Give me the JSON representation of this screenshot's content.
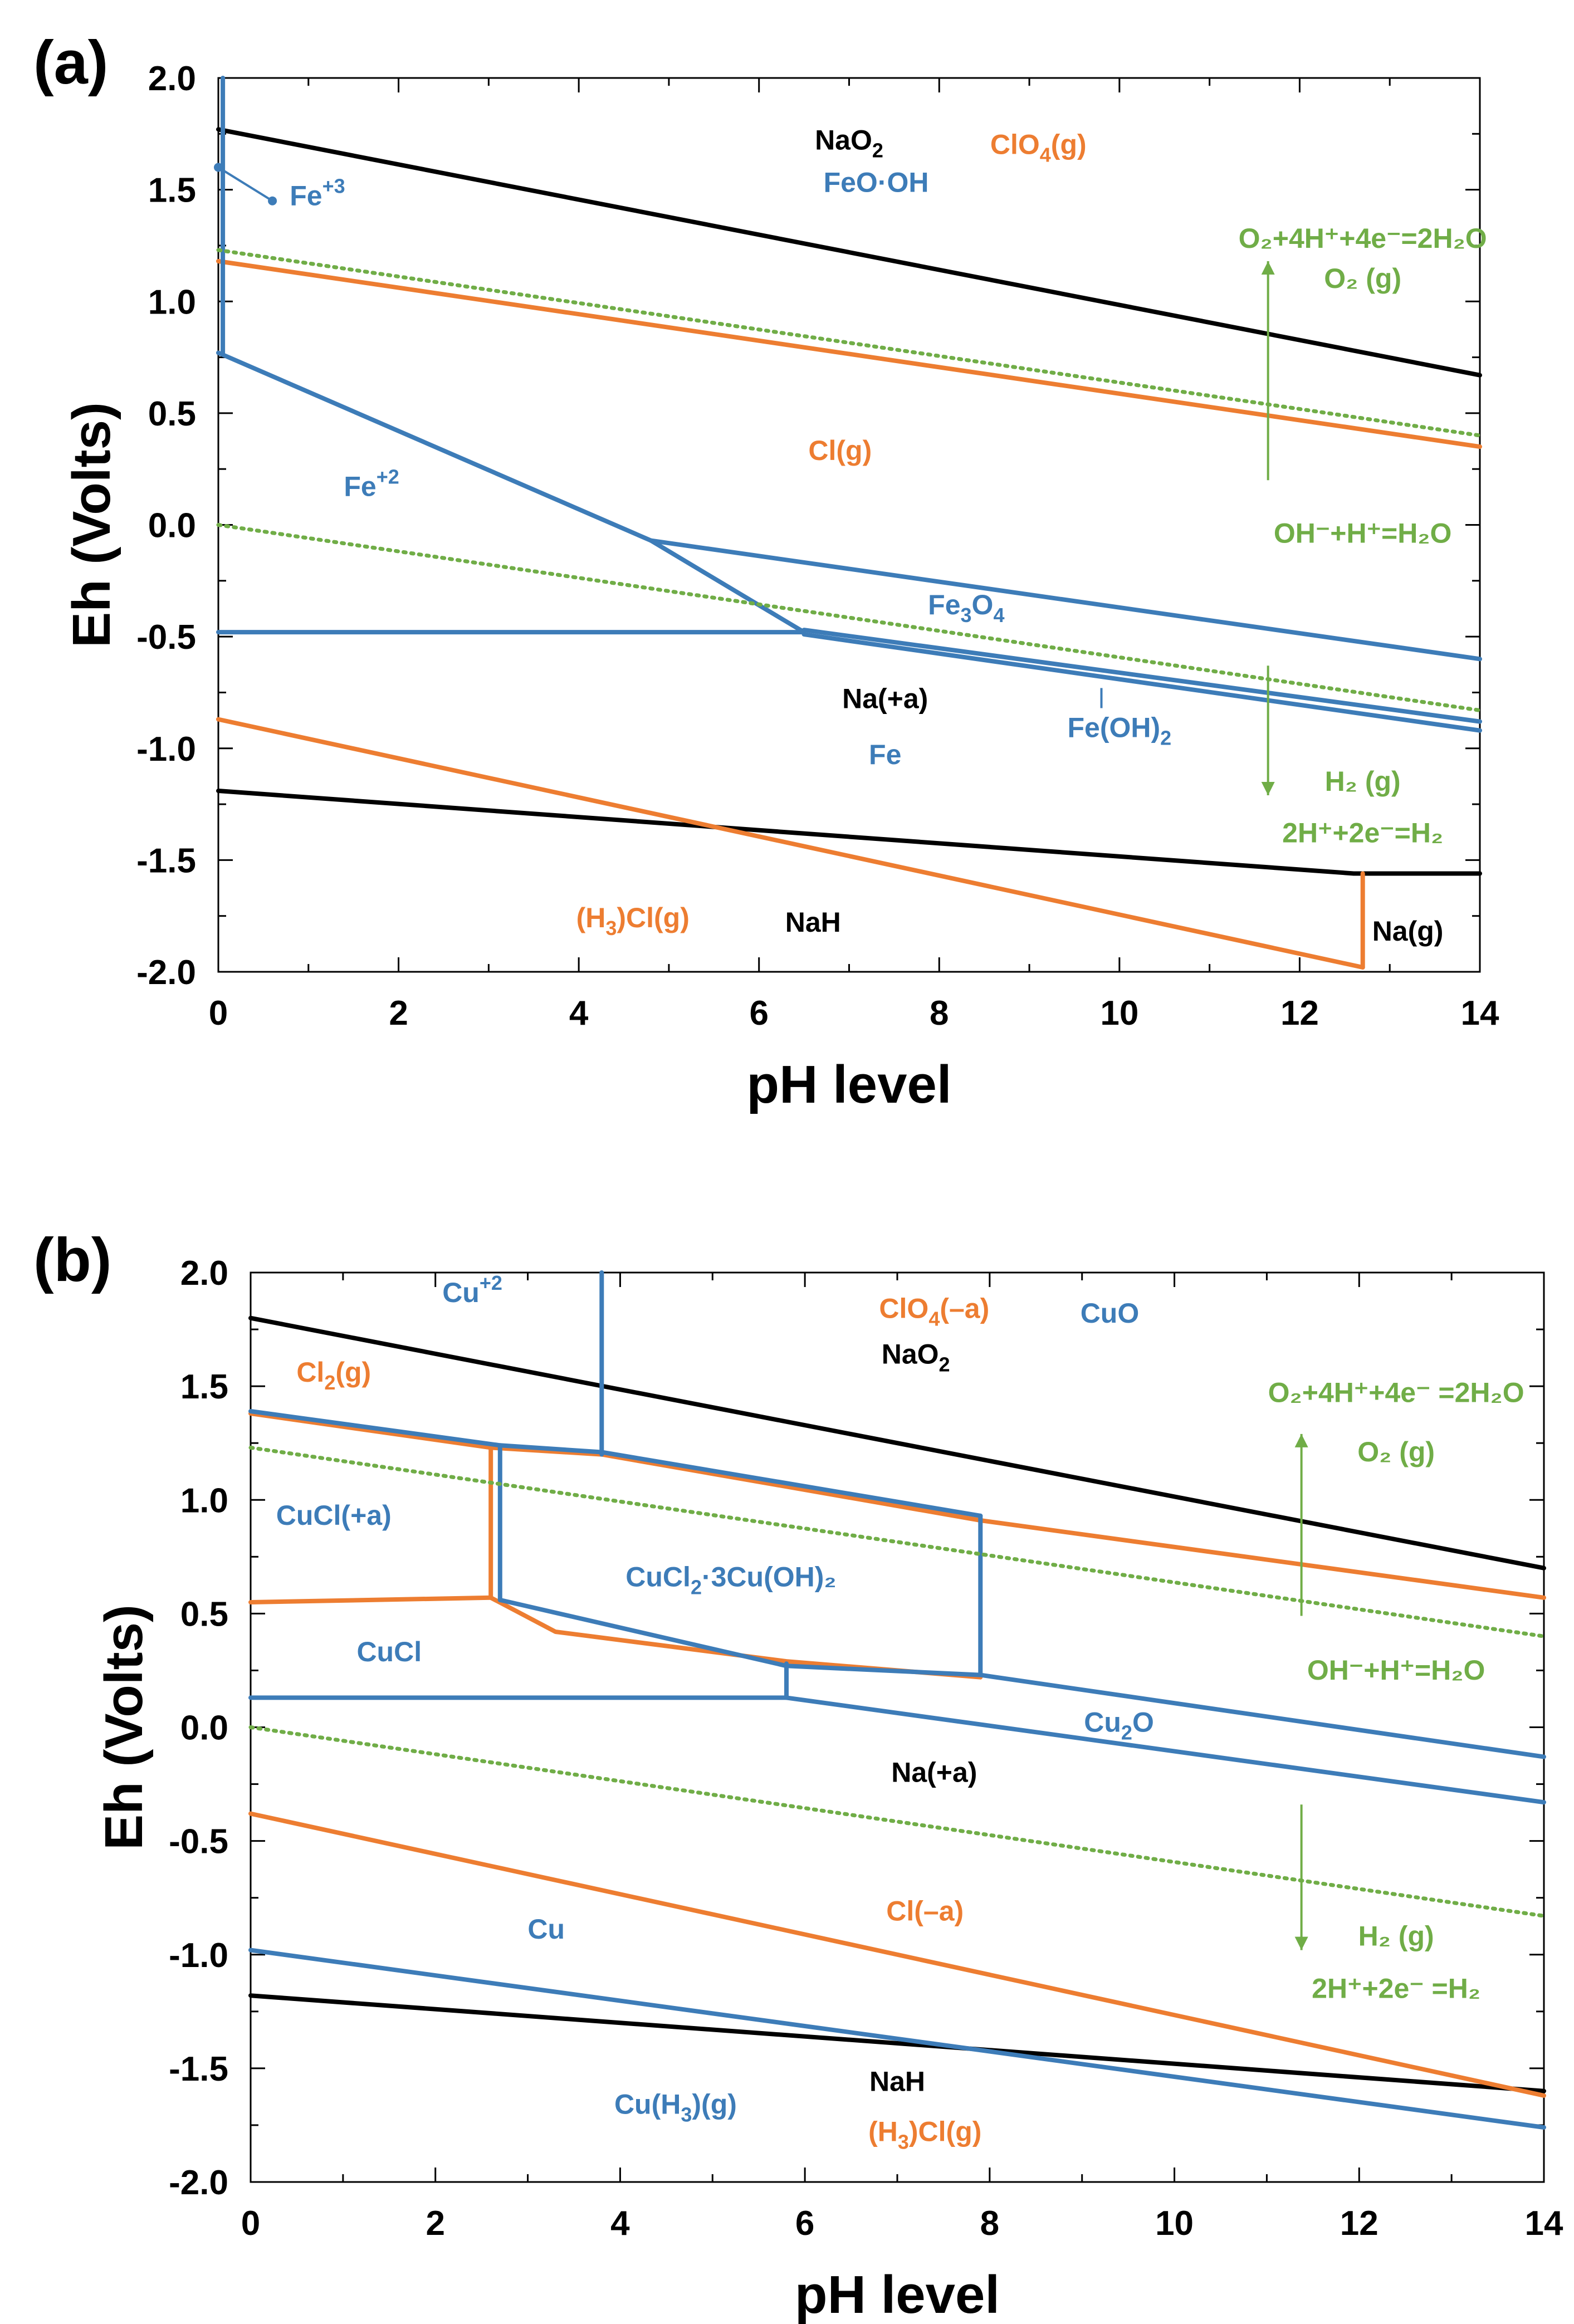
{
  "colors": {
    "black": "#000000",
    "orange": "#ED7D31",
    "blue": "#3D7CB8",
    "green": "#70AD47"
  },
  "chart_data": [
    {
      "type": "line",
      "panel": "(a)",
      "xlabel": "pH level",
      "ylabel": "Eh (Volts)",
      "xlim": [
        0,
        14
      ],
      "ylim": [
        -2.0,
        2.0
      ],
      "xticks": [
        0,
        2,
        4,
        6,
        8,
        10,
        12,
        14
      ],
      "yticks": [
        -2.0,
        -1.5,
        -1.0,
        -0.5,
        0.0,
        0.5,
        1.0,
        1.5,
        2.0
      ],
      "ytick_labels": [
        "-2.0",
        "-1.5",
        "-1.0",
        "-0.5",
        "0.0",
        "0.5",
        "1.0",
        "1.5",
        "2.0"
      ],
      "series": [
        {
          "name": "Na boundary upper",
          "system": "Na",
          "style": "solid",
          "points": [
            [
              0,
              1.77
            ],
            [
              14,
              0.67
            ]
          ]
        },
        {
          "name": "Na boundary lower",
          "system": "Na",
          "style": "solid",
          "points": [
            [
              0,
              -1.19
            ],
            [
              12.6,
              -1.56
            ],
            [
              14,
              -1.56
            ]
          ]
        },
        {
          "name": "Cl boundary upper",
          "system": "Cl",
          "style": "solid",
          "points": [
            [
              0,
              1.18
            ],
            [
              14,
              0.35
            ]
          ]
        },
        {
          "name": "Cl boundary lower",
          "system": "Cl",
          "style": "solid",
          "points": [
            [
              0,
              -0.87
            ],
            [
              12.7,
              -1.98
            ]
          ]
        },
        {
          "name": "Na(g) boundary",
          "system": "Cl",
          "style": "solid",
          "points": [
            [
              12.7,
              -1.56
            ],
            [
              12.7,
              -1.98
            ]
          ]
        },
        {
          "name": "Fe+3 boundary",
          "system": "Fe",
          "style": "solid",
          "points": [
            [
              0.05,
              0.77
            ],
            [
              0.05,
              2.0
            ]
          ]
        },
        {
          "name": "Fe+2 / FeO·OH boundary",
          "system": "Fe",
          "style": "solid",
          "points": [
            [
              0,
              0.77
            ],
            [
              4.8,
              -0.07
            ],
            [
              6.5,
              -0.48
            ]
          ]
        },
        {
          "name": "Fe+2 / Fe boundary",
          "system": "Fe",
          "style": "solid",
          "points": [
            [
              0,
              -0.48
            ],
            [
              6.5,
              -0.48
            ]
          ]
        },
        {
          "name": "Fe3O4 upper",
          "system": "Fe",
          "style": "solid",
          "points": [
            [
              4.8,
              -0.07
            ],
            [
              14,
              -0.6
            ]
          ]
        },
        {
          "name": "Fe(OH)2 upper",
          "system": "Fe",
          "style": "solid",
          "points": [
            [
              6.5,
              -0.47
            ],
            [
              14,
              -0.88
            ]
          ]
        },
        {
          "name": "Fe(OH)2 lower",
          "system": "Fe",
          "style": "solid",
          "points": [
            [
              6.5,
              -0.49
            ],
            [
              14,
              -0.92
            ]
          ]
        },
        {
          "name": "O2 / H2O",
          "system": "water",
          "style": "dotted",
          "points": [
            [
              0,
              1.23
            ],
            [
              14,
              0.4
            ]
          ]
        },
        {
          "name": "H2 / H+",
          "system": "water",
          "style": "dotted",
          "points": [
            [
              0,
              0.0
            ],
            [
              14,
              -0.83
            ]
          ]
        }
      ],
      "labels": [
        {
          "text": "NaO",
          "sub": "2",
          "tail": "",
          "x": 7.0,
          "y": 1.68,
          "system": "Na"
        },
        {
          "text": "ClO",
          "sub": "4",
          "tail": "(g)",
          "x": 9.1,
          "y": 1.66,
          "system": "Cl"
        },
        {
          "text": "FeO·OH",
          "sub": "",
          "tail": "",
          "x": 7.3,
          "y": 1.49,
          "system": "Fe"
        },
        {
          "text": "Fe",
          "sup": "+3",
          "tail": "",
          "x": 1.1,
          "y": 1.43,
          "system": "Fe"
        },
        {
          "text": "Cl(g)",
          "sub": "",
          "tail": "",
          "x": 6.9,
          "y": 0.29,
          "system": "Cl"
        },
        {
          "text": "Fe",
          "sup": "+2",
          "tail": "",
          "x": 1.7,
          "y": 0.13,
          "system": "Fe"
        },
        {
          "text": "Fe",
          "sub": "3",
          "mid": "O",
          "sub2": "4",
          "tail": "",
          "x": 8.3,
          "y": -0.4,
          "system": "Fe"
        },
        {
          "text": "Na(+a)",
          "sub": "",
          "tail": "",
          "x": 7.4,
          "y": -0.82,
          "system": "Na"
        },
        {
          "text": "Fe",
          "sub": "",
          "tail": "",
          "x": 7.4,
          "y": -1.07,
          "system": "Fe"
        },
        {
          "text": "Fe(OH)",
          "sub": "2",
          "tail": "",
          "x": 10.0,
          "y": -0.95,
          "system": "Fe"
        },
        {
          "text": "(H",
          "sub": "3",
          "tail": ")Cl(g)",
          "x": 4.6,
          "y": -1.8,
          "system": "Cl"
        },
        {
          "text": "NaH",
          "sub": "",
          "tail": "",
          "x": 6.6,
          "y": -1.82,
          "system": "Na"
        },
        {
          "text": "Na(g)",
          "sub": "",
          "tail": "",
          "x": 13.2,
          "y": -1.86,
          "system": "Na"
        }
      ],
      "water_labels": [
        {
          "text": "O₂+4H⁺+4e⁻=2H₂O",
          "x": 12.7,
          "y": 1.24
        },
        {
          "text": "O₂ (g)",
          "x": 12.7,
          "y": 1.06
        },
        {
          "text": "OH⁻+H⁺=H₂O",
          "x": 12.7,
          "y": -0.08
        },
        {
          "text": "H₂ (g)",
          "x": 12.7,
          "y": -1.19
        },
        {
          "text": "2H⁺+2e⁻=H₂",
          "x": 12.7,
          "y": -1.42
        }
      ]
    },
    {
      "type": "line",
      "panel": "(b)",
      "xlabel": "pH level",
      "ylabel": "Eh (Volts)",
      "xlim": [
        0,
        14
      ],
      "ylim": [
        -2.0,
        2.0
      ],
      "xticks": [
        0,
        2,
        4,
        6,
        8,
        10,
        12,
        14
      ],
      "yticks": [
        -2.0,
        -1.5,
        -1.0,
        -0.5,
        0.0,
        0.5,
        1.0,
        1.5,
        2.0
      ],
      "ytick_labels": [
        "-2.0",
        "-1.5",
        "-1.0",
        "-0.5",
        "0.0",
        "0.5",
        "1.0",
        "1.5",
        "2.0"
      ],
      "series": [
        {
          "name": "Na boundary upper",
          "system": "Na",
          "style": "solid",
          "points": [
            [
              0,
              1.8
            ],
            [
              14,
              0.7
            ]
          ]
        },
        {
          "name": "Na boundary lower",
          "system": "Na",
          "style": "solid",
          "points": [
            [
              0,
              -1.18
            ],
            [
              14,
              -1.6
            ]
          ]
        },
        {
          "name": "Cl2 boundary",
          "system": "Cl",
          "style": "solid",
          "points": [
            [
              0,
              1.38
            ],
            [
              2.6,
              1.23
            ],
            [
              3.8,
              1.2
            ],
            [
              7.9,
              0.91
            ],
            [
              14,
              0.57
            ]
          ]
        },
        {
          "name": "CuCl(+a) lower orange",
          "system": "Cl",
          "style": "solid",
          "points": [
            [
              0,
              0.55
            ],
            [
              2.6,
              0.57
            ]
          ]
        },
        {
          "name": "orange vertical",
          "system": "Cl",
          "style": "solid",
          "points": [
            [
              2.6,
              1.23
            ],
            [
              2.6,
              0.57
            ]
          ]
        },
        {
          "name": "orange lower boundary",
          "system": "Cl",
          "style": "solid",
          "points": [
            [
              2.6,
              0.57
            ],
            [
              3.3,
              0.42
            ],
            [
              5.8,
              0.29
            ],
            [
              7.9,
              0.22
            ]
          ]
        },
        {
          "name": "Cl(-a) boundary",
          "system": "Cl",
          "style": "solid",
          "points": [
            [
              0,
              -0.38
            ],
            [
              14,
              -1.62
            ]
          ]
        },
        {
          "name": "Cu+2 vertical",
          "system": "Cu",
          "style": "solid",
          "points": [
            [
              3.8,
              2.0
            ],
            [
              3.8,
              1.2
            ]
          ]
        },
        {
          "name": "Cu upper",
          "system": "Cu",
          "style": "solid",
          "points": [
            [
              0,
              1.39
            ],
            [
              2.7,
              1.24
            ],
            [
              3.8,
              1.21
            ],
            [
              7.9,
              0.93
            ]
          ]
        },
        {
          "name": "CuCl2 box left",
          "system": "Cu",
          "style": "solid",
          "points": [
            [
              2.7,
              1.24
            ],
            [
              2.7,
              0.56
            ]
          ]
        },
        {
          "name": "CuCl2 box bottom",
          "system": "Cu",
          "style": "solid",
          "points": [
            [
              2.7,
              0.56
            ],
            [
              5.8,
              0.27
            ],
            [
              7.9,
              0.23
            ]
          ]
        },
        {
          "name": "CuCl2 box right",
          "system": "Cu",
          "style": "solid",
          "points": [
            [
              7.9,
              0.93
            ],
            [
              7.9,
              0.23
            ]
          ]
        },
        {
          "name": "CuCl / Cu boundary",
          "system": "Cu",
          "style": "solid",
          "points": [
            [
              0,
              0.13
            ],
            [
              5.8,
              0.13
            ],
            [
              5.8,
              0.28
            ]
          ]
        },
        {
          "name": "Cu2O upper",
          "system": "Cu",
          "style": "solid",
          "points": [
            [
              7.9,
              0.23
            ],
            [
              14,
              -0.13
            ]
          ]
        },
        {
          "name": "Cu2O lower",
          "system": "Cu",
          "style": "solid",
          "points": [
            [
              5.8,
              0.13
            ],
            [
              14,
              -0.33
            ]
          ]
        },
        {
          "name": "Cu / Cu(H3)(g)",
          "system": "Cu",
          "style": "solid",
          "points": [
            [
              0,
              -0.98
            ],
            [
              14,
              -1.76
            ]
          ]
        },
        {
          "name": "O2 / H2O",
          "system": "water",
          "style": "dotted",
          "points": [
            [
              0,
              1.23
            ],
            [
              14,
              0.4
            ]
          ]
        },
        {
          "name": "H2 / H+",
          "system": "water",
          "style": "dotted",
          "points": [
            [
              0,
              0.0
            ],
            [
              14,
              -0.83
            ]
          ]
        }
      ],
      "labels": [
        {
          "text": "Cu",
          "sup": "+2",
          "tail": "",
          "x": 2.4,
          "y": 1.87,
          "system": "Cu"
        },
        {
          "text": "ClO",
          "sub": "4",
          "tail": "(–a)",
          "x": 7.4,
          "y": 1.8,
          "system": "Cl"
        },
        {
          "text": "CuO",
          "sub": "",
          "tail": "",
          "x": 9.3,
          "y": 1.78,
          "system": "Cu"
        },
        {
          "text": "NaO",
          "sub": "2",
          "tail": "",
          "x": 7.2,
          "y": 1.6,
          "system": "Na"
        },
        {
          "text": "Cl",
          "sub": "2",
          "tail": "(g)",
          "x": 0.9,
          "y": 1.52,
          "system": "Cl"
        },
        {
          "text": "CuCl(+a)",
          "sub": "",
          "tail": "",
          "x": 0.9,
          "y": 0.89,
          "system": "Cu"
        },
        {
          "text": "CuCl",
          "sub": "2",
          "tail": "·3Cu(OH)₂",
          "x": 5.2,
          "y": 0.62,
          "system": "Cu"
        },
        {
          "text": "CuCl",
          "sub": "",
          "tail": "",
          "x": 1.5,
          "y": 0.29,
          "system": "Cu"
        },
        {
          "text": "Cu",
          "sub": "2",
          "tail": "O",
          "x": 9.4,
          "y": -0.02,
          "system": "Cu"
        },
        {
          "text": "Na(+a)",
          "sub": "",
          "tail": "",
          "x": 7.4,
          "y": -0.24,
          "system": "Na"
        },
        {
          "text": "Cl(–a)",
          "sub": "",
          "tail": "",
          "x": 7.3,
          "y": -0.85,
          "system": "Cl"
        },
        {
          "text": "Cu",
          "sub": "",
          "tail": "",
          "x": 3.2,
          "y": -0.93,
          "system": "Cu"
        },
        {
          "text": "Cu(H",
          "sub": "3",
          "tail": ")(g)",
          "x": 4.6,
          "y": -1.7,
          "system": "Cu"
        },
        {
          "text": "NaH",
          "sub": "",
          "tail": "",
          "x": 7.0,
          "y": -1.6,
          "system": "Na"
        },
        {
          "text": "(H",
          "sub": "3",
          "tail": ")Cl(g)",
          "x": 7.3,
          "y": -1.82,
          "system": "Cl"
        }
      ],
      "water_labels": [
        {
          "text": "O₂+4H⁺+4e⁻ =2H₂O",
          "x": 12.4,
          "y": 1.43
        },
        {
          "text": "O₂ (g)",
          "x": 12.4,
          "y": 1.17
        },
        {
          "text": "OH⁻+H⁺=H₂O",
          "x": 12.4,
          "y": 0.21
        },
        {
          "text": "H₂ (g)",
          "x": 12.4,
          "y": -0.96
        },
        {
          "text": "2H⁺+2e⁻ =H₂",
          "x": 12.4,
          "y": -1.19
        }
      ]
    }
  ]
}
